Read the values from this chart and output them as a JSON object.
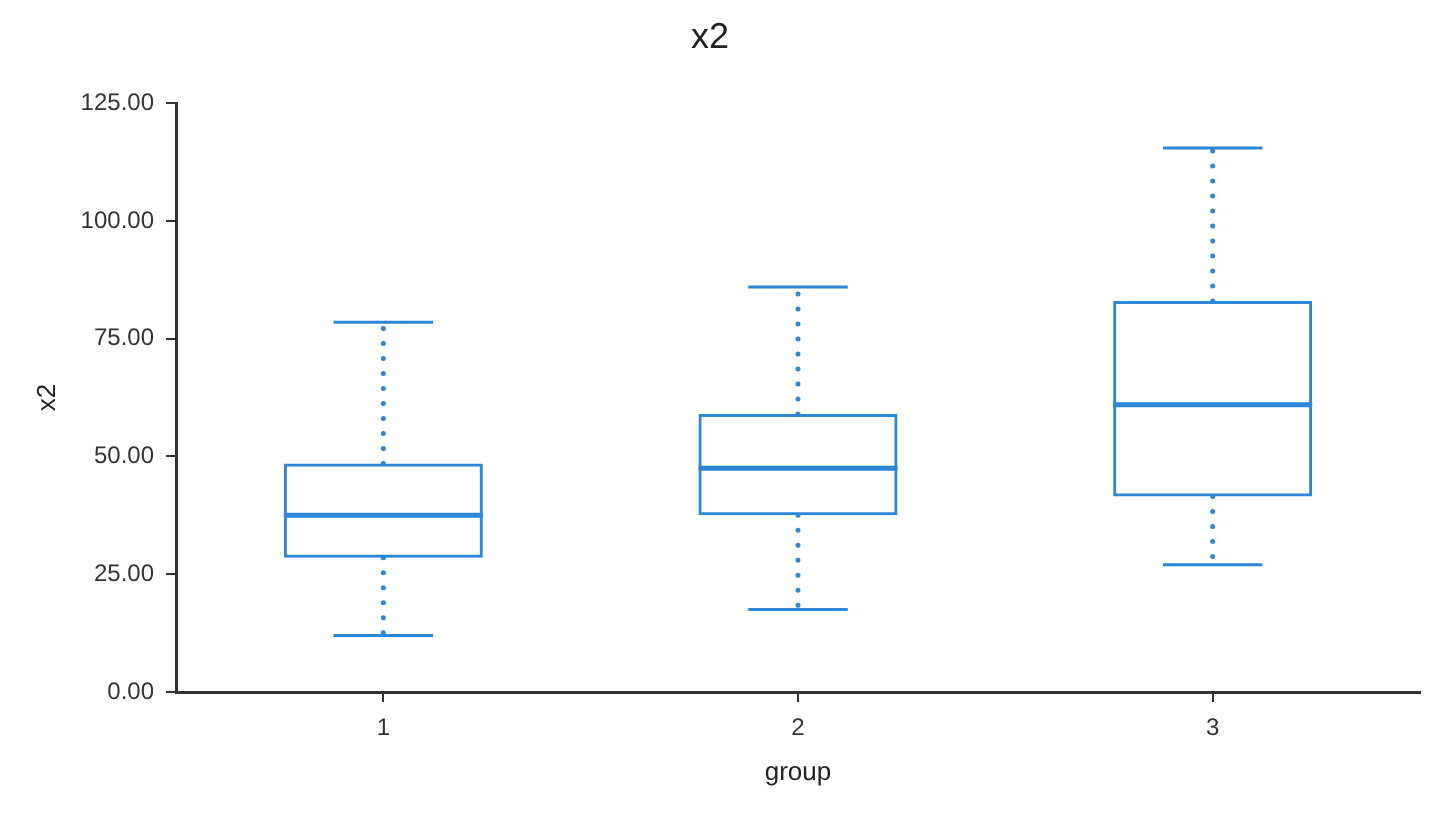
{
  "chart_data": {
    "type": "box",
    "title": "x2",
    "xlabel": "group",
    "ylabel": "x2",
    "categories": [
      "1",
      "2",
      "3"
    ],
    "color": "#2e86d6",
    "boxes": [
      {
        "low": 12,
        "q1": 28.5,
        "median": 37.5,
        "q3": 48.5,
        "high": 78.5
      },
      {
        "low": 17.5,
        "q1": 37.5,
        "median": 47.5,
        "q3": 59,
        "high": 86
      },
      {
        "low": 27,
        "q1": 41.5,
        "median": 61,
        "q3": 83,
        "high": 115.5
      }
    ],
    "ylim": [
      0,
      125
    ],
    "yticks": [
      {
        "value": 0,
        "label": "0.00"
      },
      {
        "value": 25,
        "label": "25.00"
      },
      {
        "value": 50,
        "label": "50.00"
      },
      {
        "value": 75,
        "label": "75.00"
      },
      {
        "value": 100,
        "label": "100.00"
      },
      {
        "value": 125,
        "label": "125.00"
      }
    ],
    "grid": false,
    "legend": false,
    "line_style": "dotted"
  }
}
